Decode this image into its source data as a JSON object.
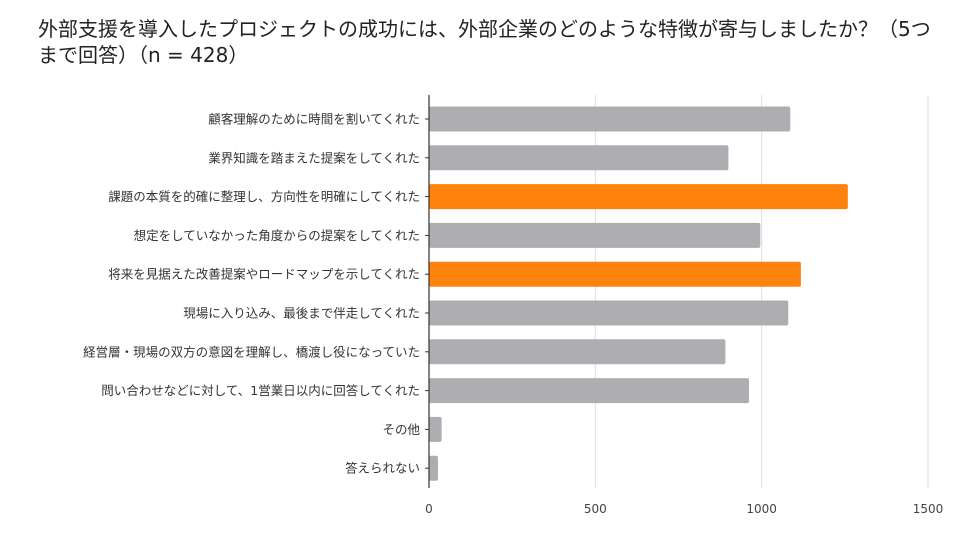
{
  "chart_data": {
    "type": "bar",
    "orientation": "horizontal",
    "title": "外部支援を導入したプロジェクトの成功には、外部企業のどのような特徴が寄与しましたか？（5つまで回答）（n = 428）",
    "categories": [
      "顧客理解のために時間を割いてくれた",
      "業界知識を踏まえた提案をしてくれた",
      "課題の本質を的確に整理し、方向性を明確にしてくれた",
      "想定をしていなかった角度からの提案をしてくれた",
      "将来を見据えた改善提案やロードマップを示してくれた",
      "現場に入り込み、最後まで伴走してくれた",
      "経営層・現場の双方の意図を理解し、橋渡し役になっていた",
      "問い合わせなどに対して、1営業日以内に回答してくれた",
      "その他",
      "答えられない"
    ],
    "values": [
      1086,
      900,
      1259,
      996,
      1118,
      1080,
      891,
      962,
      38,
      27
    ],
    "highlight": [
      false,
      false,
      true,
      false,
      true,
      false,
      false,
      false,
      false,
      false
    ],
    "xlim": [
      0,
      1500
    ],
    "xticks": [
      "0",
      "500",
      "1000",
      "1500"
    ],
    "grid": true,
    "colors": {
      "default": "#aeadb2",
      "highlight": "#fd830d",
      "grid": "#dddddd",
      "axis": "#333333"
    }
  }
}
